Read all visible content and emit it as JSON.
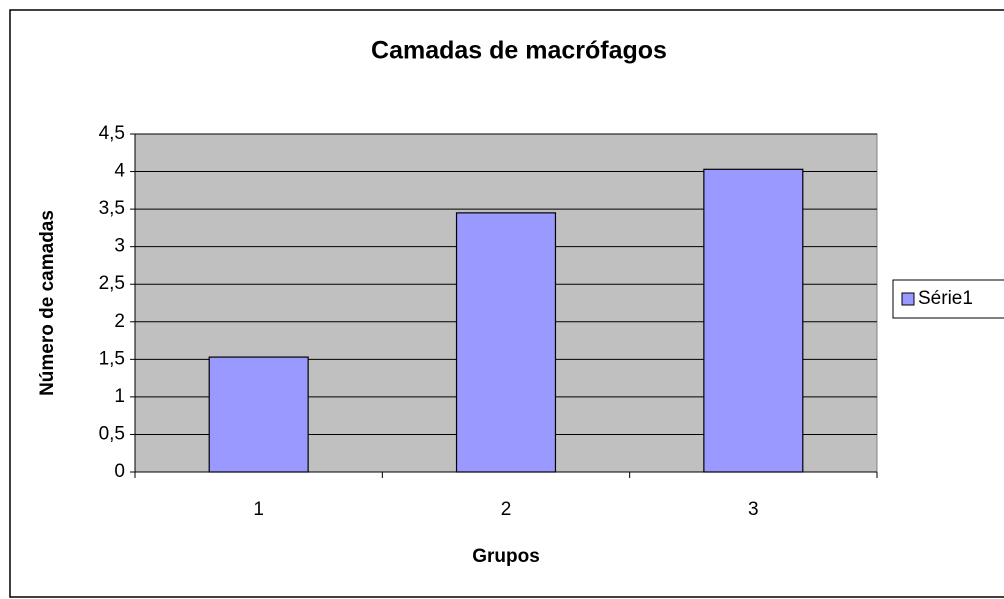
{
  "chart_data": {
    "type": "bar",
    "title": "Camadas de macrófagos",
    "x_label": "Grupos",
    "y_label": "Número de camadas",
    "categories": [
      "1",
      "2",
      "3"
    ],
    "series": [
      {
        "name": "Série1",
        "color": "#9999ff",
        "values": [
          1.53,
          3.45,
          4.03
        ]
      }
    ],
    "ylim": [
      0,
      4.5
    ],
    "yticks": [
      0,
      {
        "value": 0.5,
        "label": "0,5"
      },
      1,
      {
        "value": 1.5,
        "label": "1,5"
      },
      2,
      {
        "value": 2.5,
        "label": "2,5"
      },
      3,
      {
        "value": 3.5,
        "label": "3,5"
      },
      4,
      {
        "value": 4.5,
        "label": "4,5"
      }
    ],
    "grid": true,
    "legend": "right"
  }
}
